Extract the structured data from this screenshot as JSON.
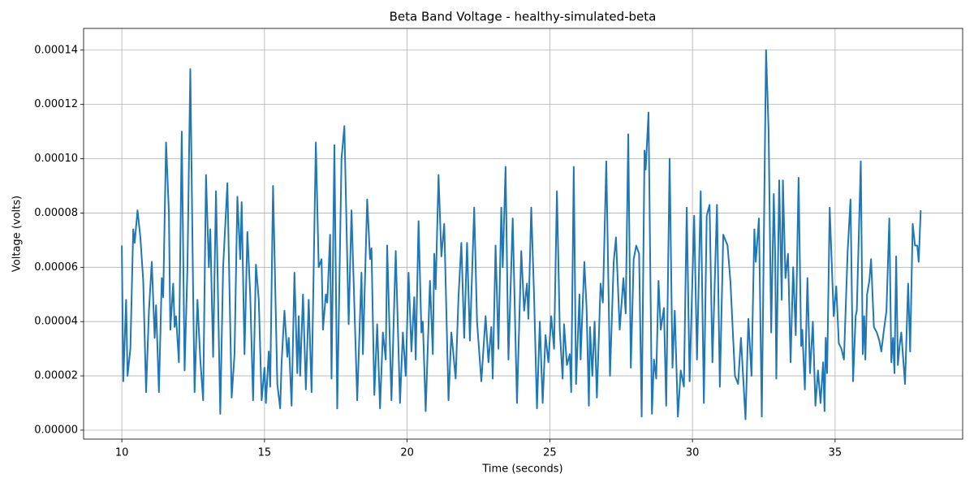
{
  "chart_data": {
    "type": "line",
    "title": "Beta Band Voltage - healthy-simulated-beta",
    "x_label": "Time (seconds)",
    "y_label": "Voltage (volts)",
    "grid": true,
    "xlim": [
      8.66,
      39.47
    ],
    "ylim": [
      -3.3e-06,
      0.000148
    ],
    "xticks": [
      10,
      15,
      20,
      25,
      30,
      35
    ],
    "yticks": [
      {
        "value": 0,
        "label": "0.00000"
      },
      {
        "value": 2e-05,
        "label": "0.00002"
      },
      {
        "value": 4e-05,
        "label": "0.00004"
      },
      {
        "value": 6e-05,
        "label": "0.00006"
      },
      {
        "value": 8e-05,
        "label": "0.00008"
      },
      {
        "value": 0.0001,
        "label": "0.00010"
      },
      {
        "value": 0.00012,
        "label": "0.00012"
      },
      {
        "value": 0.00014,
        "label": "0.00014"
      }
    ],
    "x": [
      10.0,
      10.05,
      10.15,
      10.2,
      10.3,
      10.4,
      10.45,
      10.55,
      10.65,
      10.75,
      10.85,
      10.95,
      11.05,
      11.15,
      11.2,
      11.3,
      11.4,
      11.45,
      11.55,
      11.65,
      11.7,
      11.8,
      11.85,
      11.9,
      12.0,
      12.1,
      12.2,
      12.3,
      12.4,
      12.5,
      12.55,
      12.65,
      12.75,
      12.85,
      12.95,
      13.05,
      13.1,
      13.2,
      13.3,
      13.45,
      13.55,
      13.7,
      13.85,
      13.95,
      14.05,
      14.15,
      14.2,
      14.3,
      14.4,
      14.5,
      14.6,
      14.7,
      14.8,
      14.9,
      15.0,
      15.05,
      15.15,
      15.2,
      15.3,
      15.45,
      15.55,
      15.6,
      15.7,
      15.8,
      15.85,
      15.95,
      16.05,
      16.15,
      16.2,
      16.25,
      16.35,
      16.45,
      16.55,
      16.65,
      16.8,
      16.9,
      17.0,
      17.05,
      17.15,
      17.2,
      17.3,
      17.35,
      17.45,
      17.55,
      17.7,
      17.8,
      17.95,
      18.05,
      18.25,
      18.4,
      18.45,
      18.6,
      18.7,
      18.75,
      18.85,
      18.95,
      19.05,
      19.15,
      19.25,
      19.3,
      19.45,
      19.6,
      19.75,
      19.85,
      19.95,
      20.05,
      20.15,
      20.25,
      20.3,
      20.4,
      20.5,
      20.55,
      20.65,
      20.8,
      20.9,
      20.95,
      21.0,
      21.1,
      21.2,
      21.3,
      21.45,
      21.55,
      21.7,
      21.8,
      21.9,
      22.0,
      22.1,
      22.2,
      22.35,
      22.45,
      22.6,
      22.75,
      22.85,
      22.95,
      23.0,
      23.1,
      23.2,
      23.3,
      23.35,
      23.45,
      23.55,
      23.7,
      23.85,
      24.0,
      24.1,
      24.2,
      24.25,
      24.35,
      24.45,
      24.55,
      24.65,
      24.75,
      24.85,
      24.95,
      25.05,
      25.15,
      25.25,
      25.35,
      25.45,
      25.5,
      25.6,
      25.7,
      25.75,
      25.84,
      25.92,
      26.04,
      26.08,
      26.21,
      26.29,
      26.37,
      26.41,
      26.49,
      26.57,
      26.65,
      26.78,
      26.86,
      26.98,
      27.11,
      27.24,
      27.32,
      27.45,
      27.58,
      27.66,
      27.75,
      27.84,
      27.94,
      28.03,
      28.13,
      28.22,
      28.32,
      28.36,
      28.46,
      28.58,
      28.65,
      28.73,
      28.81,
      28.89,
      29.0,
      29.08,
      29.2,
      29.3,
      29.38,
      29.49,
      29.59,
      29.7,
      29.8,
      29.9,
      30.06,
      30.16,
      30.29,
      30.4,
      30.5,
      30.6,
      30.7,
      30.86,
      30.96,
      31.08,
      31.23,
      31.33,
      31.49,
      31.6,
      31.7,
      31.86,
      31.96,
      32.07,
      32.17,
      32.22,
      32.33,
      32.43,
      32.58,
      32.67,
      32.76,
      32.85,
      32.9,
      32.94,
      33.04,
      33.13,
      33.17,
      33.26,
      33.35,
      33.44,
      33.53,
      33.62,
      33.72,
      33.81,
      33.85,
      33.94,
      34.03,
      34.12,
      34.22,
      34.31,
      34.4,
      34.49,
      34.58,
      34.63,
      34.67,
      34.72,
      34.81,
      34.95,
      35.04,
      35.13,
      35.22,
      35.31,
      35.44,
      35.54,
      35.63,
      35.72,
      35.76,
      35.9,
      35.97,
      36.02,
      36.06,
      36.12,
      36.2,
      36.26,
      36.36,
      36.46,
      36.55,
      36.62,
      36.7,
      36.8,
      36.9,
      36.97,
      37.03,
      37.08,
      37.14,
      37.2,
      37.26,
      37.32,
      37.45,
      37.56,
      37.63,
      37.72,
      37.8,
      37.88,
      37.93,
      38.0
    ],
    "series": [
      {
        "name": "Beta Band Voltage",
        "color": "#1f77b4",
        "values": [
          6.8e-05,
          1.8e-05,
          4.8e-05,
          2e-05,
          3e-05,
          7.4e-05,
          6.9e-05,
          8.1e-05,
          7.1e-05,
          5.5e-05,
          1.4e-05,
          4.4e-05,
          6.2e-05,
          3.4e-05,
          4.6e-05,
          1.4e-05,
          5.6e-05,
          4.9e-05,
          0.000106,
          8e-05,
          3.7e-05,
          5.4e-05,
          3.8e-05,
          4.2e-05,
          2.5e-05,
          0.00011,
          2.2e-05,
          6e-05,
          0.000133,
          5e-05,
          1.4e-05,
          4.8e-05,
          2.6e-05,
          1.1e-05,
          9.4e-05,
          6e-05,
          7.4e-05,
          2.7e-05,
          8.8e-05,
          6e-06,
          6e-05,
          9.1e-05,
          1.2e-05,
          2.8e-05,
          8.6e-05,
          6.3e-05,
          8.4e-05,
          2.8e-05,
          7.3e-05,
          5e-05,
          1.1e-05,
          6.1e-05,
          4.8e-05,
          1.1e-05,
          2.3e-05,
          1e-05,
          2.9e-05,
          1.6e-05,
          9e-05,
          1.7e-05,
          8e-06,
          2.5e-05,
          4.4e-05,
          2.7e-05,
          3.4e-05,
          9e-06,
          5.8e-05,
          2.1e-05,
          4.2e-05,
          2e-05,
          5e-05,
          1.5e-05,
          4.8e-05,
          1.4e-05,
          0.000106,
          6e-05,
          6.3e-05,
          3.7e-05,
          5e-05,
          4.7e-05,
          7.2e-05,
          1.9e-05,
          0.000105,
          8e-06,
          0.0001,
          0.000112,
          3.9e-05,
          8.1e-05,
          1.1e-05,
          5.8e-05,
          2.8e-05,
          8.5e-05,
          6.3e-05,
          6.7e-05,
          1.3e-05,
          3.9e-05,
          8e-06,
          3.6e-05,
          2.6e-05,
          6.8e-05,
          1.1e-05,
          6.6e-05,
          1e-05,
          3.6e-05,
          2e-05,
          5.8e-05,
          2.9e-05,
          4.9e-05,
          2.6e-05,
          7.7e-05,
          3.6e-05,
          4e-05,
          7e-06,
          5.5e-05,
          2.8e-05,
          6.5e-05,
          5.2e-05,
          9.4e-05,
          6.4e-05,
          7.6e-05,
          1.1e-05,
          3.6e-05,
          1.9e-05,
          4.9e-05,
          6.9e-05,
          3.4e-05,
          6.9e-05,
          3.3e-05,
          8.2e-05,
          4e-05,
          1.8e-05,
          4.2e-05,
          2.5e-05,
          3.8e-05,
          1.9e-05,
          6.8e-05,
          3e-05,
          8.2e-05,
          6e-05,
          9.7e-05,
          2.6e-05,
          7.8e-05,
          1e-05,
          6.6e-05,
          4.4e-05,
          5.4e-05,
          4.1e-05,
          8.2e-05,
          4.9e-05,
          8e-06,
          4e-05,
          1e-05,
          3.5e-05,
          2.5e-05,
          4.2e-05,
          3e-05,
          8.8e-05,
          3.7e-05,
          1.9e-05,
          3.9e-05,
          2.4e-05,
          2.8e-05,
          1.4e-05,
          9.7e-05,
          1.7e-05,
          5e-05,
          2.6e-05,
          6.2e-05,
          4.5e-05,
          9e-06,
          3.8e-05,
          2e-05,
          4e-05,
          1.2e-05,
          5.4e-05,
          4.7e-05,
          9.9e-05,
          2e-05,
          6.2e-05,
          7.1e-05,
          3.7e-05,
          5.6e-05,
          4.3e-05,
          0.000109,
          2.3e-05,
          6.3e-05,
          6.8e-05,
          6.5e-05,
          5e-06,
          0.000103,
          9.6e-05,
          0.000117,
          6e-06,
          2.6e-05,
          1.9e-05,
          5.5e-05,
          3.7e-05,
          4.5e-05,
          9e-06,
          0.0001,
          2.3e-05,
          4.4e-05,
          5e-06,
          2.2e-05,
          1.6e-05,
          8.2e-05,
          1.8e-05,
          7.9e-05,
          2.6e-05,
          8.8e-05,
          1e-05,
          7.9e-05,
          8.3e-05,
          2.5e-05,
          8.3e-05,
          1.6e-05,
          7.2e-05,
          6.8e-05,
          5.5e-05,
          2e-05,
          1.7e-05,
          3.4e-05,
          4e-06,
          4.1e-05,
          2e-05,
          7.4e-05,
          6.2e-05,
          7.8e-05,
          5e-06,
          0.00014,
          0.00011,
          3.6e-05,
          8.7e-05,
          6.4e-05,
          1.9e-05,
          9.2e-05,
          4.8e-05,
          9.2e-05,
          5.6e-05,
          6.5e-05,
          2.5e-05,
          6e-05,
          3.5e-05,
          9.3e-05,
          3.1e-05,
          3.7e-05,
          1.5e-05,
          5.6e-05,
          2.1e-05,
          4e-05,
          9e-06,
          2.2e-05,
          1e-05,
          2.5e-05,
          7e-06,
          3.4e-05,
          2.1e-05,
          8.2e-05,
          4.2e-05,
          5.3e-05,
          3.2e-05,
          3e-05,
          2.6e-05,
          6.6e-05,
          8.5e-05,
          1.8e-05,
          4.2e-05,
          4.4e-05,
          9.9e-05,
          2.8e-05,
          4.2e-05,
          2.6e-05,
          5e-05,
          5.5e-05,
          6.3e-05,
          3.8e-05,
          3.6e-05,
          3.3e-05,
          2.9e-05,
          3.6e-05,
          4.4e-05,
          7.8e-05,
          2.5e-05,
          3.4e-05,
          2.1e-05,
          6.4e-05,
          2.4e-05,
          3.1e-05,
          3.6e-05,
          1.7e-05,
          5.4e-05,
          2.9e-05,
          7.6e-05,
          6.8e-05,
          6.8e-05,
          6.2e-05,
          8.1e-05
        ]
      }
    ]
  }
}
